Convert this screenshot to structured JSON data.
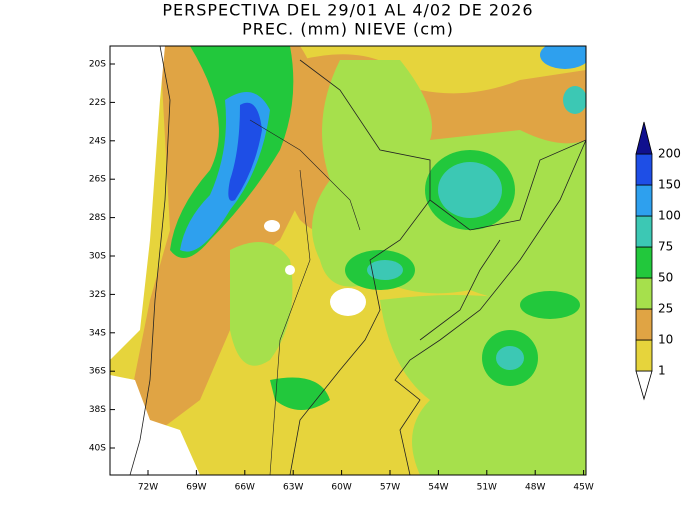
{
  "header": {
    "title": "PERSPECTIVA DEL 29/01 AL 4/02 DE 2026",
    "subtitle": "PREC. (mm) NIEVE (cm)"
  },
  "map": {
    "longitude_labels": [
      "72W",
      "69W",
      "66W",
      "63W",
      "60W",
      "57W",
      "54W",
      "51W",
      "48W",
      "45W"
    ],
    "latitude_labels": [
      "20S",
      "22S",
      "24S",
      "26S",
      "28S",
      "30S",
      "32S",
      "34S",
      "36S",
      "38S",
      "40S"
    ]
  },
  "legend": {
    "levels": [
      {
        "value": 1,
        "color": "#e6d43c"
      },
      {
        "value": 10,
        "color": "#e0a444"
      },
      {
        "value": 25,
        "color": "#a6e04c"
      },
      {
        "value": 50,
        "color": "#22c83c"
      },
      {
        "value": 75,
        "color": "#3cc8b4"
      },
      {
        "value": 100,
        "color": "#2ea0ee"
      },
      {
        "value": 150,
        "color": "#1e4ee6"
      },
      {
        "value": 200,
        "color": "#10108e"
      }
    ]
  }
}
